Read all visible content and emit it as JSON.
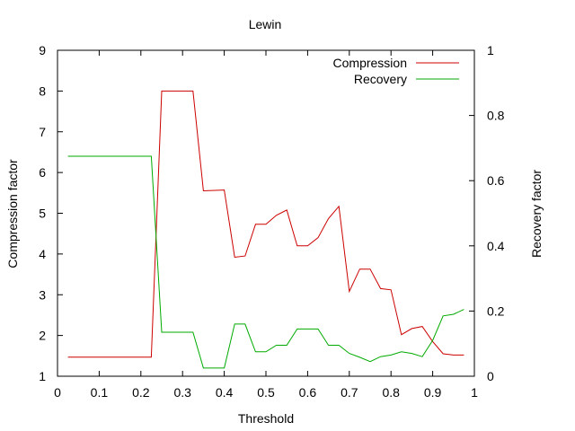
{
  "chart_data": {
    "type": "line",
    "title": "Lewin",
    "xlabel": "Threshold",
    "ylabel": "Compression factor",
    "y2label": "Recovery factor",
    "xlim": [
      0,
      1
    ],
    "ylim": [
      1,
      9
    ],
    "y2lim": [
      0,
      1
    ],
    "grid": false,
    "legend_position": "top-right",
    "x_ticks": [
      "0",
      "0.1",
      "0.2",
      "0.3",
      "0.4",
      "0.5",
      "0.6",
      "0.7",
      "0.8",
      "0.9",
      "1"
    ],
    "y_ticks": [
      "1",
      "2",
      "3",
      "4",
      "5",
      "6",
      "7",
      "8",
      "9"
    ],
    "y2_ticks": [
      "0",
      "0.2",
      "0.4",
      "0.6",
      "0.8",
      "1"
    ],
    "series": [
      {
        "name": "Compression",
        "axis": "left",
        "color": "#cc0000",
        "points": [
          [
            0.025,
            1.47
          ],
          [
            0.225,
            1.47
          ],
          [
            0.25,
            8.0
          ],
          [
            0.325,
            8.0
          ],
          [
            0.35,
            5.55
          ],
          [
            0.4,
            5.57
          ],
          [
            0.425,
            3.92
          ],
          [
            0.45,
            3.95
          ],
          [
            0.475,
            4.73
          ],
          [
            0.5,
            4.73
          ],
          [
            0.525,
            4.95
          ],
          [
            0.55,
            5.08
          ],
          [
            0.575,
            4.2
          ],
          [
            0.6,
            4.2
          ],
          [
            0.625,
            4.4
          ],
          [
            0.65,
            4.87
          ],
          [
            0.675,
            5.17
          ],
          [
            0.7,
            3.08
          ],
          [
            0.725,
            3.63
          ],
          [
            0.75,
            3.63
          ],
          [
            0.775,
            3.15
          ],
          [
            0.8,
            3.12
          ],
          [
            0.825,
            2.02
          ],
          [
            0.85,
            2.17
          ],
          [
            0.875,
            2.22
          ],
          [
            0.9,
            1.85
          ],
          [
            0.925,
            1.55
          ],
          [
            0.95,
            1.52
          ],
          [
            0.975,
            1.52
          ]
        ]
      },
      {
        "name": "Recovery",
        "axis": "right",
        "color": "#00aa00",
        "points": [
          [
            0.025,
            0.675
          ],
          [
            0.225,
            0.675
          ],
          [
            0.25,
            0.135
          ],
          [
            0.325,
            0.135
          ],
          [
            0.35,
            0.025
          ],
          [
            0.4,
            0.025
          ],
          [
            0.425,
            0.16
          ],
          [
            0.45,
            0.16
          ],
          [
            0.475,
            0.075
          ],
          [
            0.5,
            0.075
          ],
          [
            0.525,
            0.095
          ],
          [
            0.55,
            0.095
          ],
          [
            0.575,
            0.145
          ],
          [
            0.6,
            0.145
          ],
          [
            0.625,
            0.145
          ],
          [
            0.65,
            0.095
          ],
          [
            0.675,
            0.095
          ],
          [
            0.7,
            0.07
          ],
          [
            0.725,
            0.058
          ],
          [
            0.75,
            0.045
          ],
          [
            0.775,
            0.06
          ],
          [
            0.8,
            0.065
          ],
          [
            0.825,
            0.075
          ],
          [
            0.85,
            0.07
          ],
          [
            0.875,
            0.06
          ],
          [
            0.9,
            0.11
          ],
          [
            0.925,
            0.185
          ],
          [
            0.95,
            0.19
          ],
          [
            0.975,
            0.205
          ]
        ]
      }
    ]
  }
}
